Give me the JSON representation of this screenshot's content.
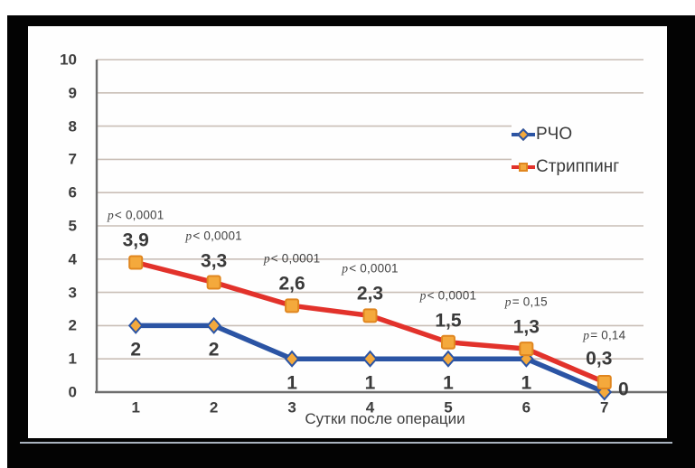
{
  "figure": {
    "frame_color": "#030303",
    "panel_color": "#fefefe",
    "underline_color": "#a9b3bf"
  },
  "chart_data": {
    "type": "line",
    "title": "",
    "xlabel": "Сутки после операции",
    "ylabel": "",
    "categories": [
      "1",
      "2",
      "3",
      "4",
      "5",
      "6",
      "7"
    ],
    "ylim": [
      0,
      10
    ],
    "yticks": [
      "0",
      "1",
      "2",
      "3",
      "4",
      "5",
      "6",
      "7",
      "8",
      "9",
      "10"
    ],
    "grid": true,
    "gridline_color": "#c9beb6",
    "axis_color": "#6e6e6e",
    "legend_position": "upper-right",
    "series": [
      {
        "name": "РЧО",
        "color": "#2b54a4",
        "marker": "diamond",
        "marker_fill": "#f4a93c",
        "marker_stroke": "#2b54a4",
        "values": [
          2,
          2,
          1,
          1,
          1,
          1,
          0
        ],
        "labels": [
          "2",
          "2",
          "1",
          "1",
          "1",
          "1",
          "0"
        ],
        "label_position": "below"
      },
      {
        "name": "Стриппинг",
        "color": "#e2322b",
        "marker": "square",
        "marker_fill": "#f4a93c",
        "marker_stroke": "#e0861f",
        "values": [
          3.9,
          3.3,
          2.6,
          2.3,
          1.5,
          1.3,
          0.3
        ],
        "labels": [
          "3,9",
          "3,3",
          "2,6",
          "2,3",
          "1,5",
          "1,3",
          "0,3"
        ],
        "label_position": "above"
      }
    ],
    "annotations": [
      "p< 0,0001",
      "p< 0,0001",
      "p< 0,0001",
      "p< 0,0001",
      "p< 0,0001",
      "p= 0,15",
      "p= 0,14"
    ]
  }
}
